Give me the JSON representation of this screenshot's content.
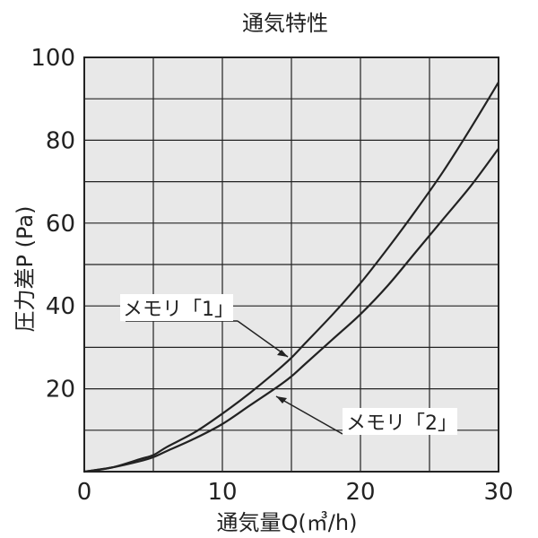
{
  "chart_data": {
    "type": "line",
    "title": "通気特性",
    "xlabel": "通気量Q(㎥/h)",
    "ylabel": "圧力差P (Pa)",
    "xlim": [
      0,
      30
    ],
    "ylim": [
      0,
      100
    ],
    "x_ticks": [
      0,
      10,
      20,
      30
    ],
    "y_ticks": [
      20,
      40,
      60,
      80,
      100
    ],
    "grid": true,
    "grid_x_step": 5,
    "grid_y_step": 10,
    "plot_background": "#e8e8e8",
    "line_color": "#222222",
    "series": [
      {
        "name": "メモリ「1」",
        "x": [
          0,
          2,
          4,
          5,
          6,
          8,
          10,
          12,
          14,
          15,
          16,
          18,
          20,
          22,
          24,
          26,
          28,
          30
        ],
        "y": [
          0,
          1,
          3,
          4,
          6,
          9.5,
          14,
          19,
          24.5,
          27.5,
          31,
          38,
          45.5,
          54,
          63,
          72.5,
          83,
          94
        ]
      },
      {
        "name": "メモリ「2」",
        "x": [
          0,
          2,
          4,
          5,
          6,
          8,
          10,
          12,
          14,
          15,
          16,
          18,
          20,
          22,
          24,
          26,
          28,
          30
        ],
        "y": [
          0,
          1,
          2.5,
          3.5,
          5,
          8,
          11.5,
          16,
          20.5,
          23,
          26,
          32,
          38,
          45,
          53,
          61,
          69,
          78
        ]
      }
    ]
  }
}
